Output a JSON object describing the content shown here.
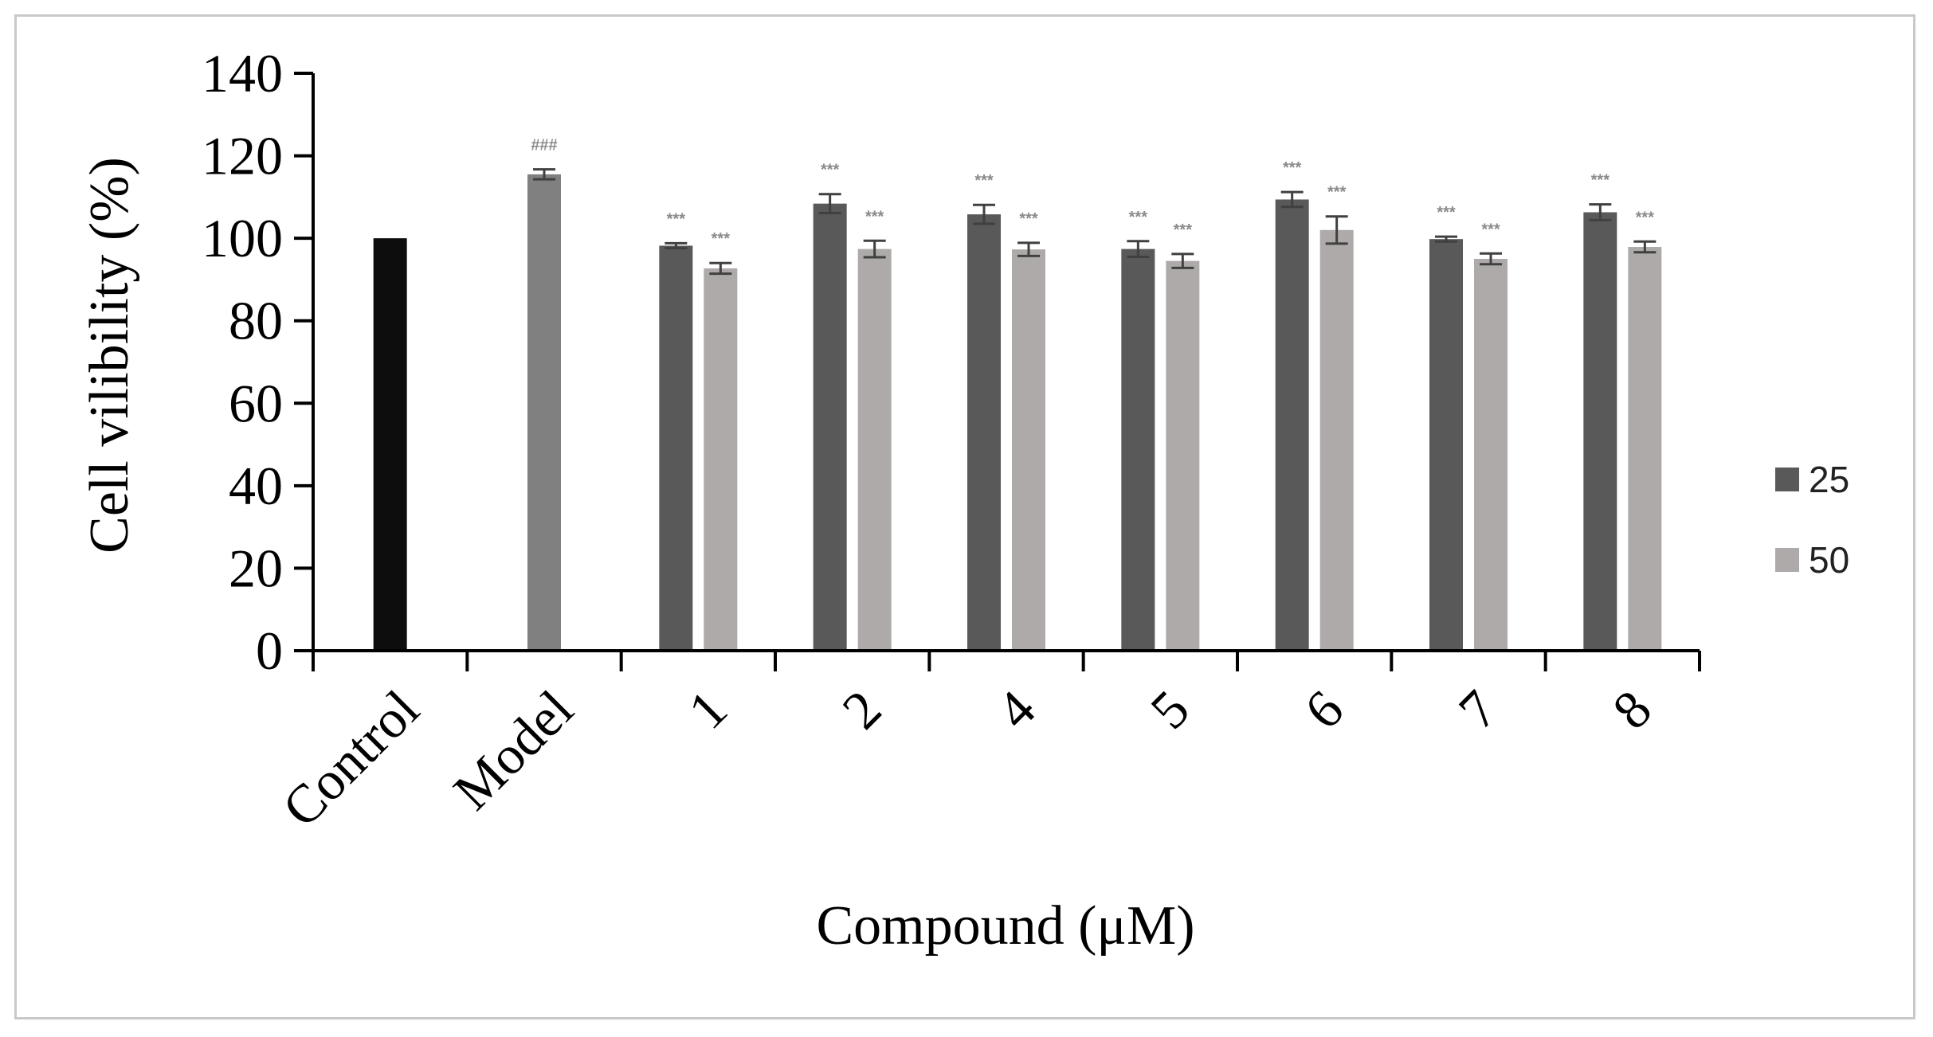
{
  "chart_data": {
    "type": "bar",
    "title": "",
    "xlabel": "Compound (μM)",
    "ylabel": "Cell vilibility (%)",
    "ylim": [
      0,
      140
    ],
    "yticks": [
      0,
      20,
      40,
      60,
      80,
      100,
      120,
      140
    ],
    "grid": false,
    "legend_position": "right",
    "categories": [
      "Control",
      "Model",
      "1",
      "2",
      "4",
      "5",
      "6",
      "7",
      "8"
    ],
    "series": [
      {
        "name": "25",
        "color": "#595959"
      },
      {
        "name": "50",
        "color": "#aeaaaa"
      }
    ],
    "bars": [
      {
        "category": "Control",
        "series": null,
        "value": 100,
        "error": 0,
        "color": "#0d0d0d",
        "label": ""
      },
      {
        "category": "Model",
        "series": null,
        "value": 115.5,
        "error": 1.2,
        "color": "#808080",
        "label": "###"
      },
      {
        "category": "1",
        "series": "25",
        "value": 98.2,
        "error": 0.6,
        "color": "#595959",
        "label": "***"
      },
      {
        "category": "1",
        "series": "50",
        "value": 92.7,
        "error": 1.3,
        "color": "#aeaaaa",
        "label": "***"
      },
      {
        "category": "2",
        "series": "25",
        "value": 108.4,
        "error": 2.3,
        "color": "#595959",
        "label": "***"
      },
      {
        "category": "2",
        "series": "50",
        "value": 97.4,
        "error": 2.0,
        "color": "#aeaaaa",
        "label": "***"
      },
      {
        "category": "4",
        "series": "25",
        "value": 105.8,
        "error": 2.3,
        "color": "#595959",
        "label": "***"
      },
      {
        "category": "4",
        "series": "50",
        "value": 97.3,
        "error": 1.6,
        "color": "#aeaaaa",
        "label": "***"
      },
      {
        "category": "5",
        "series": "25",
        "value": 97.4,
        "error": 1.9,
        "color": "#595959",
        "label": "***"
      },
      {
        "category": "5",
        "series": "50",
        "value": 94.5,
        "error": 1.7,
        "color": "#aeaaaa",
        "label": "***"
      },
      {
        "category": "6",
        "series": "25",
        "value": 109.4,
        "error": 1.8,
        "color": "#595959",
        "label": "***"
      },
      {
        "category": "6",
        "series": "50",
        "value": 102.0,
        "error": 3.3,
        "color": "#aeaaaa",
        "label": "***"
      },
      {
        "category": "7",
        "series": "25",
        "value": 99.8,
        "error": 0.6,
        "color": "#595959",
        "label": "***"
      },
      {
        "category": "7",
        "series": "50",
        "value": 95.0,
        "error": 1.3,
        "color": "#aeaaaa",
        "label": "***"
      },
      {
        "category": "8",
        "series": "25",
        "value": 106.3,
        "error": 1.9,
        "color": "#595959",
        "label": "***"
      },
      {
        "category": "8",
        "series": "50",
        "value": 97.9,
        "error": 1.3,
        "color": "#aeaaaa",
        "label": "***"
      }
    ]
  }
}
